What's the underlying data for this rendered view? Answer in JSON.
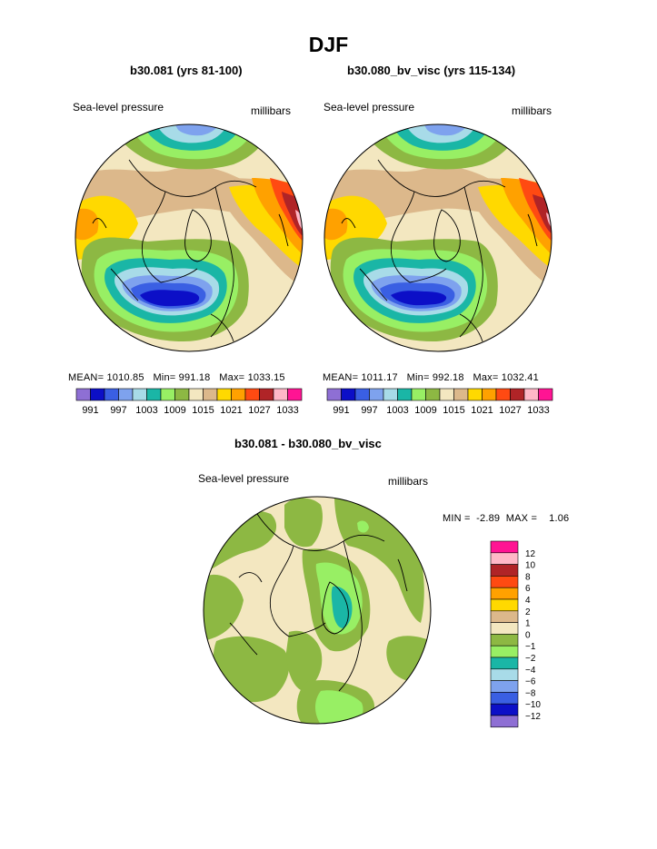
{
  "title": "DJF",
  "colors": {
    "palette": [
      "#8e6fd4",
      "#0c0fc7",
      "#3a5fe3",
      "#7ea2ee",
      "#a8dbe8",
      "#1ab6a6",
      "#98ef64",
      "#8db843",
      "#f3e7c0",
      "#dcb88b",
      "#ffd900",
      "#ffa100",
      "#ff4a12",
      "#b02427",
      "#ffb8c7",
      "#ff1493"
    ],
    "diff_palette": [
      "#8e6fd4",
      "#0c0fc7",
      "#3a5fe3",
      "#7ea2ee",
      "#a8dbe8",
      "#1ab6a6",
      "#98ef64",
      "#8db843",
      "#f3e7c0",
      "#dcb88b",
      "#ffd900",
      "#ffa100",
      "#ff4a12",
      "#b02427",
      "#ffb8c7",
      "#ff1493"
    ]
  },
  "panels": [
    {
      "title": "b30.081 (yrs 81-100)",
      "field_label": "Sea-level pressure",
      "units": "millibars",
      "mean_label": "MEAN=",
      "mean": "1010.85",
      "min_label": "Min=",
      "min": "991.18",
      "max_label": "Max=",
      "max": "1033.15",
      "colorbar_labels": [
        "991",
        "997",
        "1003",
        "1009",
        "1015",
        "1021",
        "1027",
        "1033"
      ]
    },
    {
      "title": "b30.080_bv_visc (yrs 115-134)",
      "field_label": "Sea-level pressure",
      "units": "millibars",
      "mean_label": "MEAN=",
      "mean": "1011.17",
      "min_label": "Min=",
      "min": "992.18",
      "max_label": "Max=",
      "max": "1032.41",
      "colorbar_labels": [
        "991",
        "997",
        "1003",
        "1009",
        "1015",
        "1021",
        "1027",
        "1033"
      ]
    }
  ],
  "difference": {
    "title": "b30.081 - b30.080_bv_visc",
    "field_label": "Sea-level pressure",
    "units": "millibars",
    "min_label": "MIN =",
    "min": "-2.89",
    "max_label": "MAX =",
    "max": "1.06",
    "colorbar_labels": [
      "12",
      "10",
      "8",
      "6",
      "4",
      "2",
      "1",
      "0",
      "−1",
      "−2",
      "−4",
      "−6",
      "−8",
      "−10",
      "−12"
    ]
  }
}
